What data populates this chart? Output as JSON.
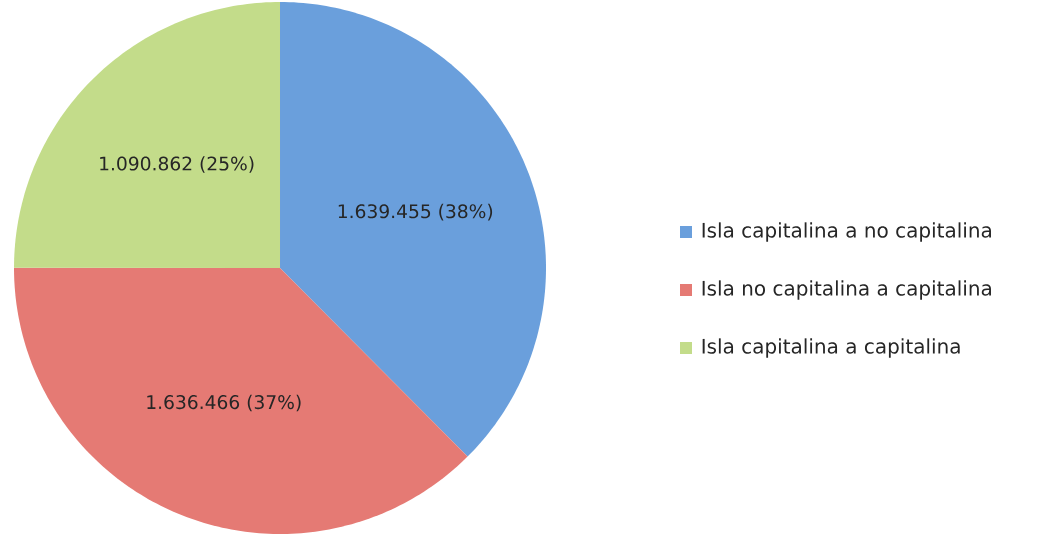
{
  "chart_data": {
    "type": "pie",
    "categories": [
      "Isla capitalina a no capitalina",
      "Isla no capitalina a capitalina",
      "Isla capitalina a capitalina"
    ],
    "values": [
      1639455,
      1636466,
      1090862
    ],
    "value_labels": [
      "1.639.455 (38%)",
      "1.636.466 (37%)",
      "1.090.862 (25%)"
    ],
    "colors": [
      "#6a9fdc",
      "#e57a74",
      "#c3dc8a"
    ],
    "legend": "right"
  }
}
